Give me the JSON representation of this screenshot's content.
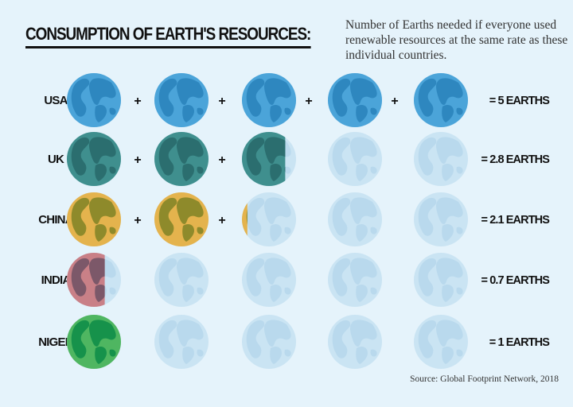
{
  "chart_data": {
    "type": "pictograph",
    "title": "CONSUMPTION OF EARTH'S RESOURCES:",
    "subtitle": "Number of Earths needed if everyone used renewable resources at the same rate as these individual countries.",
    "source": "Source: Global Footprint Network, 2018",
    "max_icons": 5,
    "series": [
      {
        "name": "USA",
        "value": 5,
        "label": "= 5 EARTHS",
        "color": "#4ba4d9",
        "land": "#2e87bf"
      },
      {
        "name": "UK",
        "value": 2.8,
        "label": "= 2.8 EARTHS",
        "color": "#3f8f8e",
        "land": "#2b6e6f"
      },
      {
        "name": "CHINA",
        "value": 2.1,
        "label": "= 2.1 EARTHS",
        "color": "#e4b34d",
        "land": "#8e8a2b"
      },
      {
        "name": "INDIA",
        "value": 0.7,
        "label": "= 0.7 EARTHS",
        "color": "#c98087",
        "land": "#7c5869"
      },
      {
        "name": "NIGER",
        "value": 1,
        "label": "= 1 EARTHS",
        "color": "#4fb661",
        "land": "#16924b"
      }
    ],
    "empty_color": "#cae4f3",
    "empty_land": "#b9d9ed",
    "separator": "+"
  }
}
